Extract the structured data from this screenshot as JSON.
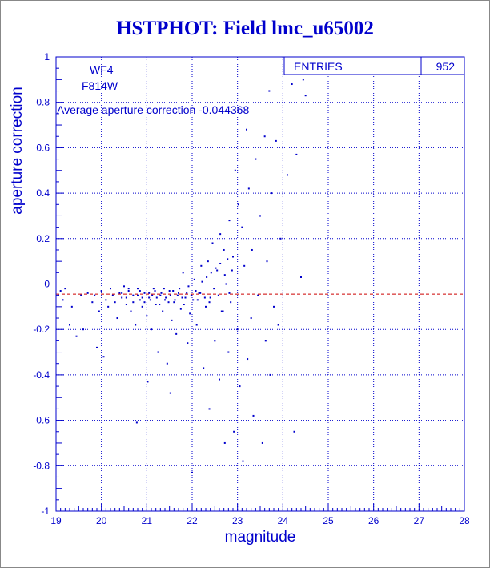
{
  "title": "HSTPHOT: Field lmc_u65002",
  "stats_box": {
    "label": "ENTRIES",
    "value": "952"
  },
  "annotations": {
    "chip": "WF4",
    "filter": "F814W",
    "average_text": "Average aperture correction -0.044368"
  },
  "colors": {
    "axis": "#0000cc",
    "points": "#0000cc",
    "average_line": "#cc0000",
    "background": "#ffffff"
  },
  "chart_data": {
    "type": "scatter",
    "title": "HSTPHOT: Field lmc_u65002",
    "xlabel": "magnitude",
    "ylabel": "aperture correction",
    "xlim": [
      19,
      28
    ],
    "ylim": [
      -1,
      1
    ],
    "x_ticks": [
      "19",
      "20",
      "21",
      "22",
      "23",
      "24",
      "25",
      "26",
      "27",
      "28"
    ],
    "y_ticks": [
      "-1",
      "-0.8",
      "-0.6",
      "-0.4",
      "-0.2",
      "0",
      "0.2",
      "0.4",
      "0.6",
      "0.8",
      "1"
    ],
    "grid": true,
    "average_aperture_correction": -0.044368,
    "entries": 952,
    "points": [
      [
        19.05,
        -0.05
      ],
      [
        19.1,
        -0.03
      ],
      [
        19.15,
        -0.07
      ],
      [
        19.2,
        -0.02
      ],
      [
        19.3,
        -0.18
      ],
      [
        19.35,
        -0.1
      ],
      [
        19.45,
        -0.23
      ],
      [
        19.55,
        -0.05
      ],
      [
        19.6,
        -0.2
      ],
      [
        19.7,
        -0.04
      ],
      [
        19.8,
        -0.08
      ],
      [
        19.85,
        -0.05
      ],
      [
        19.9,
        -0.28
      ],
      [
        19.95,
        -0.12
      ],
      [
        20.0,
        -0.03
      ],
      [
        20.05,
        -0.32
      ],
      [
        20.1,
        -0.07
      ],
      [
        20.15,
        -0.1
      ],
      [
        20.2,
        -0.02
      ],
      [
        20.25,
        -0.05
      ],
      [
        20.3,
        -0.08
      ],
      [
        20.35,
        -0.15
      ],
      [
        20.4,
        -0.04
      ],
      [
        20.45,
        -0.06
      ],
      [
        20.5,
        -0.01
      ],
      [
        20.55,
        -0.09
      ],
      [
        20.6,
        -0.03
      ],
      [
        20.65,
        -0.12
      ],
      [
        20.7,
        -0.05
      ],
      [
        20.75,
        -0.18
      ],
      [
        20.78,
        -0.61
      ],
      [
        20.8,
        -0.02
      ],
      [
        20.85,
        -0.07
      ],
      [
        20.9,
        -0.1
      ],
      [
        20.95,
        -0.04
      ],
      [
        21.0,
        -0.14
      ],
      [
        21.02,
        -0.43
      ],
      [
        21.05,
        -0.06
      ],
      [
        21.1,
        -0.2
      ],
      [
        21.15,
        -0.02
      ],
      [
        21.2,
        -0.09
      ],
      [
        21.25,
        -0.3
      ],
      [
        21.3,
        -0.05
      ],
      [
        21.35,
        -0.12
      ],
      [
        21.4,
        -0.07
      ],
      [
        21.45,
        -0.35
      ],
      [
        21.5,
        -0.03
      ],
      [
        21.52,
        -0.48
      ],
      [
        21.55,
        -0.16
      ],
      [
        21.6,
        -0.08
      ],
      [
        21.65,
        -0.22
      ],
      [
        21.7,
        -0.04
      ],
      [
        21.75,
        -0.11
      ],
      [
        21.8,
        0.05
      ],
      [
        21.85,
        -0.06
      ],
      [
        21.9,
        -0.26
      ],
      [
        21.95,
        -0.13
      ],
      [
        22.0,
        -0.83
      ],
      [
        22.02,
        -0.07
      ],
      [
        22.05,
        0.02
      ],
      [
        22.1,
        -0.18
      ],
      [
        22.15,
        -0.04
      ],
      [
        22.2,
        0.08
      ],
      [
        22.25,
        -0.37
      ],
      [
        22.3,
        -0.1
      ],
      [
        22.35,
        0.1
      ],
      [
        22.38,
        -0.55
      ],
      [
        22.4,
        -0.06
      ],
      [
        22.45,
        0.18
      ],
      [
        22.5,
        -0.25
      ],
      [
        22.55,
        0.06
      ],
      [
        22.6,
        -0.42
      ],
      [
        22.62,
        0.22
      ],
      [
        22.65,
        -0.12
      ],
      [
        22.7,
        0.15
      ],
      [
        22.72,
        -0.7
      ],
      [
        22.75,
        0.0
      ],
      [
        22.8,
        -0.3
      ],
      [
        22.82,
        0.28
      ],
      [
        22.85,
        -0.08
      ],
      [
        22.9,
        0.12
      ],
      [
        22.92,
        -0.65
      ],
      [
        22.95,
        0.5
      ],
      [
        23.0,
        -0.2
      ],
      [
        23.02,
        0.35
      ],
      [
        23.05,
        -0.45
      ],
      [
        23.1,
        0.25
      ],
      [
        23.12,
        -0.78
      ],
      [
        23.15,
        0.08
      ],
      [
        23.2,
        0.68
      ],
      [
        23.22,
        -0.33
      ],
      [
        23.25,
        0.42
      ],
      [
        23.3,
        -0.15
      ],
      [
        23.32,
        0.15
      ],
      [
        23.35,
        -0.58
      ],
      [
        23.4,
        0.55
      ],
      [
        23.45,
        -0.05
      ],
      [
        23.5,
        0.3
      ],
      [
        23.55,
        -0.7
      ],
      [
        23.6,
        0.65
      ],
      [
        23.62,
        -0.25
      ],
      [
        23.65,
        0.1
      ],
      [
        23.7,
        0.85
      ],
      [
        23.72,
        -0.4
      ],
      [
        23.75,
        0.4
      ],
      [
        23.8,
        -0.1
      ],
      [
        23.85,
        0.63
      ],
      [
        23.9,
        -0.18
      ],
      [
        23.95,
        0.2
      ],
      [
        24.1,
        0.48
      ],
      [
        24.2,
        0.88
      ],
      [
        24.25,
        -0.65
      ],
      [
        24.3,
        0.57
      ],
      [
        24.4,
        0.03
      ],
      [
        24.45,
        0.9
      ],
      [
        24.5,
        0.83
      ],
      [
        20.45,
        -0.04
      ],
      [
        20.55,
        -0.06
      ],
      [
        20.6,
        -0.02
      ],
      [
        20.7,
        -0.08
      ],
      [
        20.8,
        -0.05
      ],
      [
        20.85,
        -0.03
      ],
      [
        20.9,
        -0.06
      ],
      [
        20.95,
        -0.08
      ],
      [
        21.05,
        -0.04
      ],
      [
        21.08,
        -0.07
      ],
      [
        21.12,
        -0.05
      ],
      [
        21.18,
        -0.03
      ],
      [
        21.22,
        -0.06
      ],
      [
        21.28,
        -0.09
      ],
      [
        21.32,
        -0.04
      ],
      [
        21.38,
        -0.02
      ],
      [
        21.42,
        -0.06
      ],
      [
        21.48,
        -0.08
      ],
      [
        21.52,
        -0.05
      ],
      [
        21.58,
        -0.03
      ],
      [
        21.62,
        -0.07
      ],
      [
        21.68,
        -0.05
      ],
      [
        21.72,
        -0.02
      ],
      [
        21.78,
        -0.06
      ],
      [
        21.82,
        -0.09
      ],
      [
        21.88,
        -0.04
      ],
      [
        21.92,
        -0.01
      ],
      [
        21.98,
        -0.05
      ],
      [
        22.08,
        -0.03
      ],
      [
        22.12,
        -0.07
      ],
      [
        22.18,
        -0.04
      ],
      [
        22.22,
        0.01
      ],
      [
        22.28,
        -0.06
      ],
      [
        22.32,
        0.03
      ],
      [
        22.38,
        -0.08
      ],
      [
        22.42,
        0.05
      ],
      [
        22.48,
        -0.02
      ],
      [
        22.52,
        0.07
      ],
      [
        22.58,
        -0.05
      ],
      [
        22.62,
        0.09
      ],
      [
        22.68,
        -0.12
      ],
      [
        22.72,
        0.04
      ],
      [
        22.78,
        0.11
      ],
      [
        22.82,
        -0.04
      ],
      [
        22.88,
        0.06
      ]
    ]
  }
}
